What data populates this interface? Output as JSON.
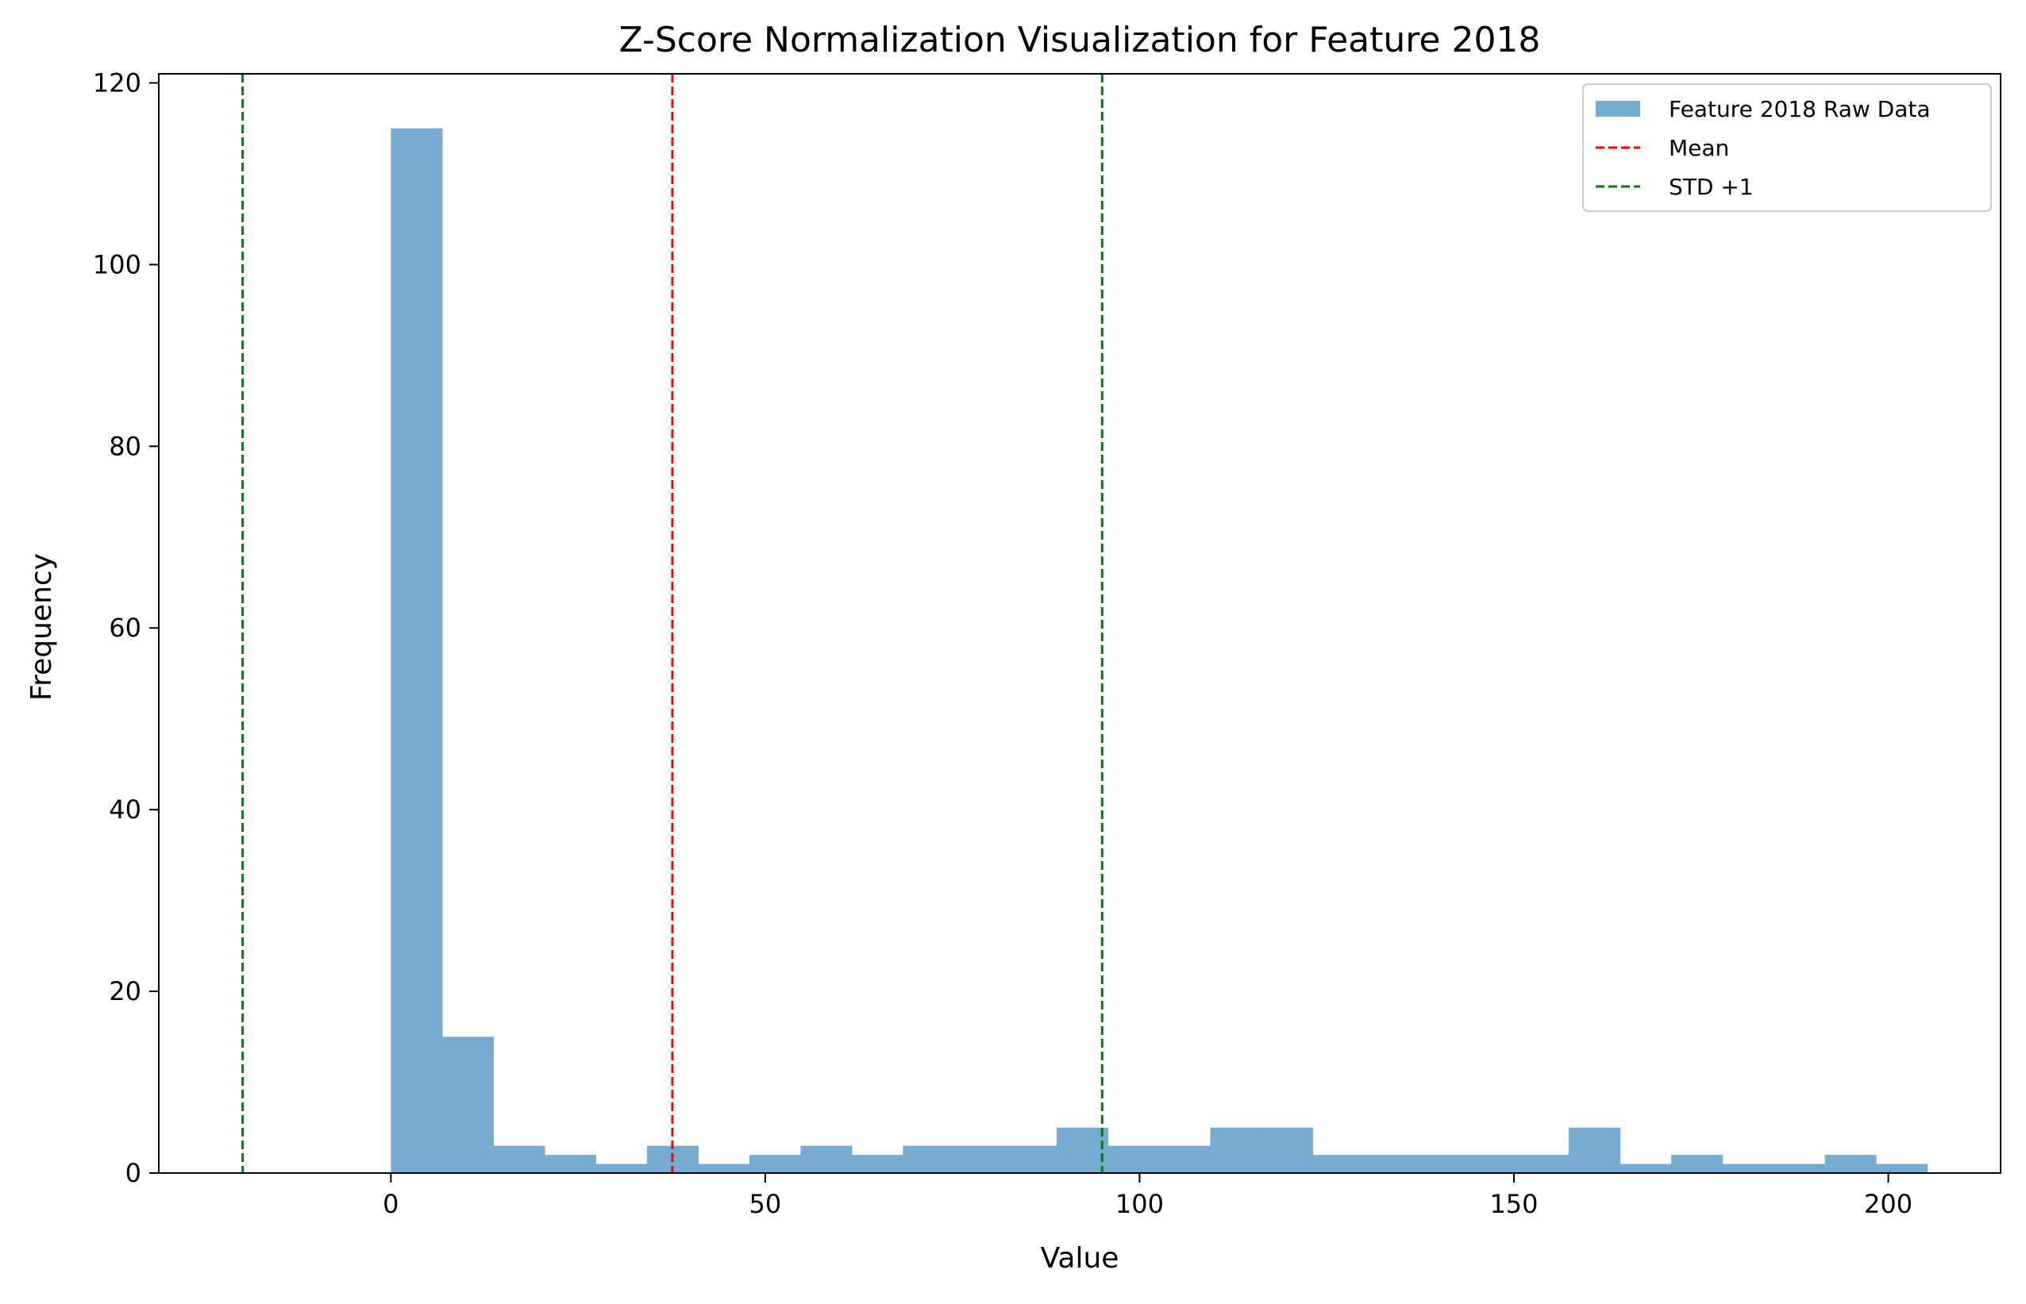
{
  "chart_data": {
    "type": "bar",
    "title": "Z-Score Normalization Visualization for Feature 2018",
    "xlabel": "Value",
    "ylabel": "Frequency",
    "xlim": [
      -31,
      215
    ],
    "ylim": [
      0,
      121
    ],
    "xticks": [
      0,
      50,
      100,
      150,
      200
    ],
    "yticks": [
      0,
      20,
      40,
      60,
      80,
      100,
      120
    ],
    "grid": false,
    "legend": {
      "placement": "upper-right",
      "entries": [
        {
          "label": "Feature 2018 Raw Data",
          "kind": "patch",
          "color": "#77acd2"
        },
        {
          "label": "Mean",
          "kind": "dashed-line",
          "color": "#ff0000"
        },
        {
          "label": "STD +1",
          "kind": "dashed-line",
          "color": "#008000"
        }
      ]
    },
    "series": [
      {
        "name": "Feature 2018 Raw Data",
        "color": "#77acd2",
        "bin_start": 0,
        "bin_width": 6.84,
        "values": [
          115,
          15,
          3,
          2,
          1,
          3,
          1,
          2,
          3,
          2,
          3,
          3,
          3,
          5,
          3,
          3,
          5,
          5,
          2,
          2,
          2,
          2,
          2,
          5,
          1,
          2,
          1,
          1,
          2,
          1
        ]
      }
    ],
    "reference_lines": [
      {
        "name": "Mean",
        "x": 37.6,
        "color": "#ff0000",
        "style": "dashed"
      },
      {
        "name": "STD +1",
        "x": 95.0,
        "color": "#008000",
        "style": "dashed"
      },
      {
        "name": "STD -1",
        "x": -19.8,
        "color": "#008000",
        "style": "dashed"
      }
    ]
  }
}
